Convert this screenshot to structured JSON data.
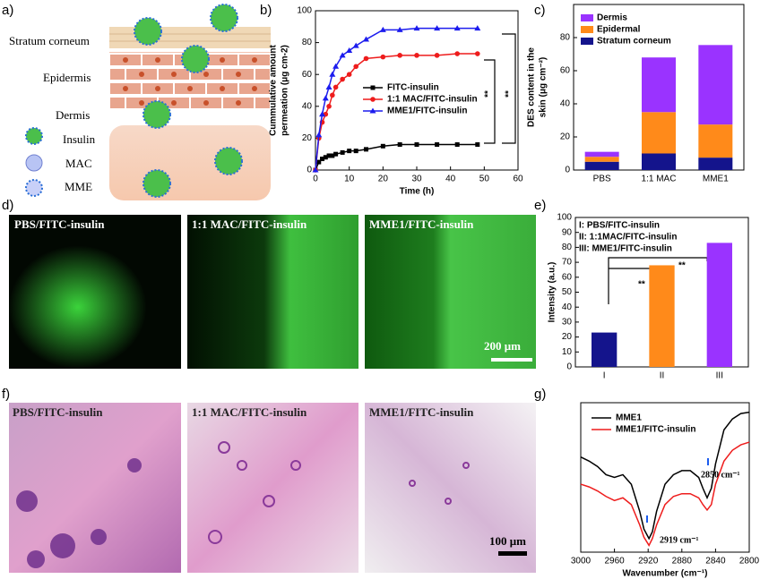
{
  "panel_labels": [
    "a)",
    "b)",
    "c)",
    "d)",
    "e)",
    "f)",
    "g)"
  ],
  "diagram": {
    "layers": [
      "Stratum corneum",
      "Epidermis",
      "Dermis"
    ],
    "legend": [
      "Insulin",
      "MAC",
      "MME"
    ]
  },
  "fluorescence": {
    "labels": [
      "PBS/FITC-insulin",
      "1:1 MAC/FITC-insulin",
      "MME1/FITC-insulin"
    ],
    "scale_bar": "200 μm"
  },
  "histology": {
    "labels": [
      "PBS/FITC-insulin",
      "1:1 MAC/FITC-insulin",
      "MME1/FITC-insulin"
    ],
    "scale_bar": "100 μm"
  },
  "chart_data": [
    {
      "type": "line",
      "xlabel": "Time (h)",
      "ylabel": [
        "Cummulative amount",
        "permeation (μg cm-2)"
      ],
      "x": [
        0,
        1,
        2,
        3,
        4,
        5,
        6,
        8,
        10,
        12,
        15,
        20,
        25,
        30,
        36,
        42,
        48
      ],
      "xlim": [
        0,
        60
      ],
      "xticks": [
        0,
        10,
        20,
        30,
        40,
        50,
        60
      ],
      "ylim": [
        0,
        100
      ],
      "yticks": [
        0,
        20,
        40,
        60,
        80,
        100
      ],
      "legend": "center",
      "series": [
        {
          "name": "FITC-insulin",
          "color": "#000000",
          "marker": "square",
          "values": [
            0,
            5,
            7,
            8,
            9,
            9,
            10,
            11,
            12,
            12,
            13,
            15,
            16,
            16,
            16,
            16,
            16
          ]
        },
        {
          "name": "1:1 MAC/FITC-insulin",
          "color": "#ee1c1c",
          "marker": "circle",
          "values": [
            0,
            20,
            30,
            35,
            40,
            47,
            52,
            57,
            60,
            65,
            70,
            71,
            72,
            72,
            72,
            73,
            73
          ]
        },
        {
          "name": "MME1/FITC-insulin",
          "color": "#1c1cee",
          "marker": "triangle",
          "values": [
            0,
            22,
            35,
            45,
            52,
            60,
            65,
            72,
            75,
            78,
            82,
            88,
            88,
            89,
            89,
            89,
            89
          ]
        }
      ],
      "annotations": [
        "**",
        "**"
      ]
    },
    {
      "type": "stacked_bar",
      "ylabel": [
        "DES content in the",
        "skin (μg cm⁻²)"
      ],
      "categories": [
        "PBS",
        "1:1 MAC",
        "MME1"
      ],
      "ylim": [
        0,
        100
      ],
      "yticks": [
        0,
        20,
        40,
        60,
        80
      ],
      "legend": "upper left",
      "series": [
        {
          "name": "Stratum corneum",
          "color": "#14148c",
          "values": [
            5,
            10,
            7.5
          ]
        },
        {
          "name": "Epidermal",
          "color": "#ff8a1a",
          "values": [
            3,
            25,
            20
          ]
        },
        {
          "name": "Dermis",
          "color": "#9a33ff",
          "values": [
            3,
            33,
            48
          ]
        }
      ]
    },
    {
      "type": "bar",
      "ylabel": [
        "Intensity (a.u.)"
      ],
      "categories": [
        "I",
        "II",
        "III"
      ],
      "values": [
        23,
        68,
        83
      ],
      "colors": [
        "#14148c",
        "#ff8a1a",
        "#9a33ff"
      ],
      "ylim": [
        0,
        100
      ],
      "yticks": [
        0,
        10,
        20,
        30,
        40,
        50,
        60,
        70,
        80,
        90,
        100
      ],
      "notes": [
        "I: PBS/FITC-insulin",
        "II: 1:1MAC/FITC-insulin",
        "III: MME1/FITC-insulin"
      ],
      "annotations": [
        "**",
        "**"
      ]
    },
    {
      "type": "line",
      "xlabel": "Wavenumber (cm⁻¹)",
      "x": [
        3000,
        2990,
        2980,
        2970,
        2960,
        2950,
        2940,
        2930,
        2925,
        2919,
        2915,
        2910,
        2900,
        2890,
        2880,
        2870,
        2860,
        2855,
        2850,
        2845,
        2840,
        2830,
        2820,
        2810,
        2800
      ],
      "xlim": [
        3000,
        2800
      ],
      "xticks": [
        3000,
        2960,
        2920,
        2880,
        2840,
        2800
      ],
      "ylim": [
        -0.05,
        1.05
      ],
      "legend": "upper left",
      "series": [
        {
          "name": "MME1",
          "color": "#000000",
          "values": [
            0.65,
            0.62,
            0.58,
            0.52,
            0.5,
            0.52,
            0.45,
            0.25,
            0.12,
            0.05,
            0.1,
            0.25,
            0.45,
            0.52,
            0.55,
            0.55,
            0.5,
            0.42,
            0.35,
            0.42,
            0.6,
            0.85,
            0.93,
            0.97,
            0.98
          ]
        },
        {
          "name": "MME1/FITC-insulin",
          "color": "#ee1c1c",
          "values": [
            0.45,
            0.43,
            0.4,
            0.36,
            0.33,
            0.35,
            0.3,
            0.15,
            0.06,
            0.0,
            0.05,
            0.15,
            0.3,
            0.36,
            0.38,
            0.38,
            0.35,
            0.3,
            0.26,
            0.3,
            0.45,
            0.62,
            0.7,
            0.74,
            0.76
          ]
        }
      ],
      "annotations": [
        "2850 cm⁻¹",
        "2919 cm⁻¹"
      ]
    }
  ]
}
